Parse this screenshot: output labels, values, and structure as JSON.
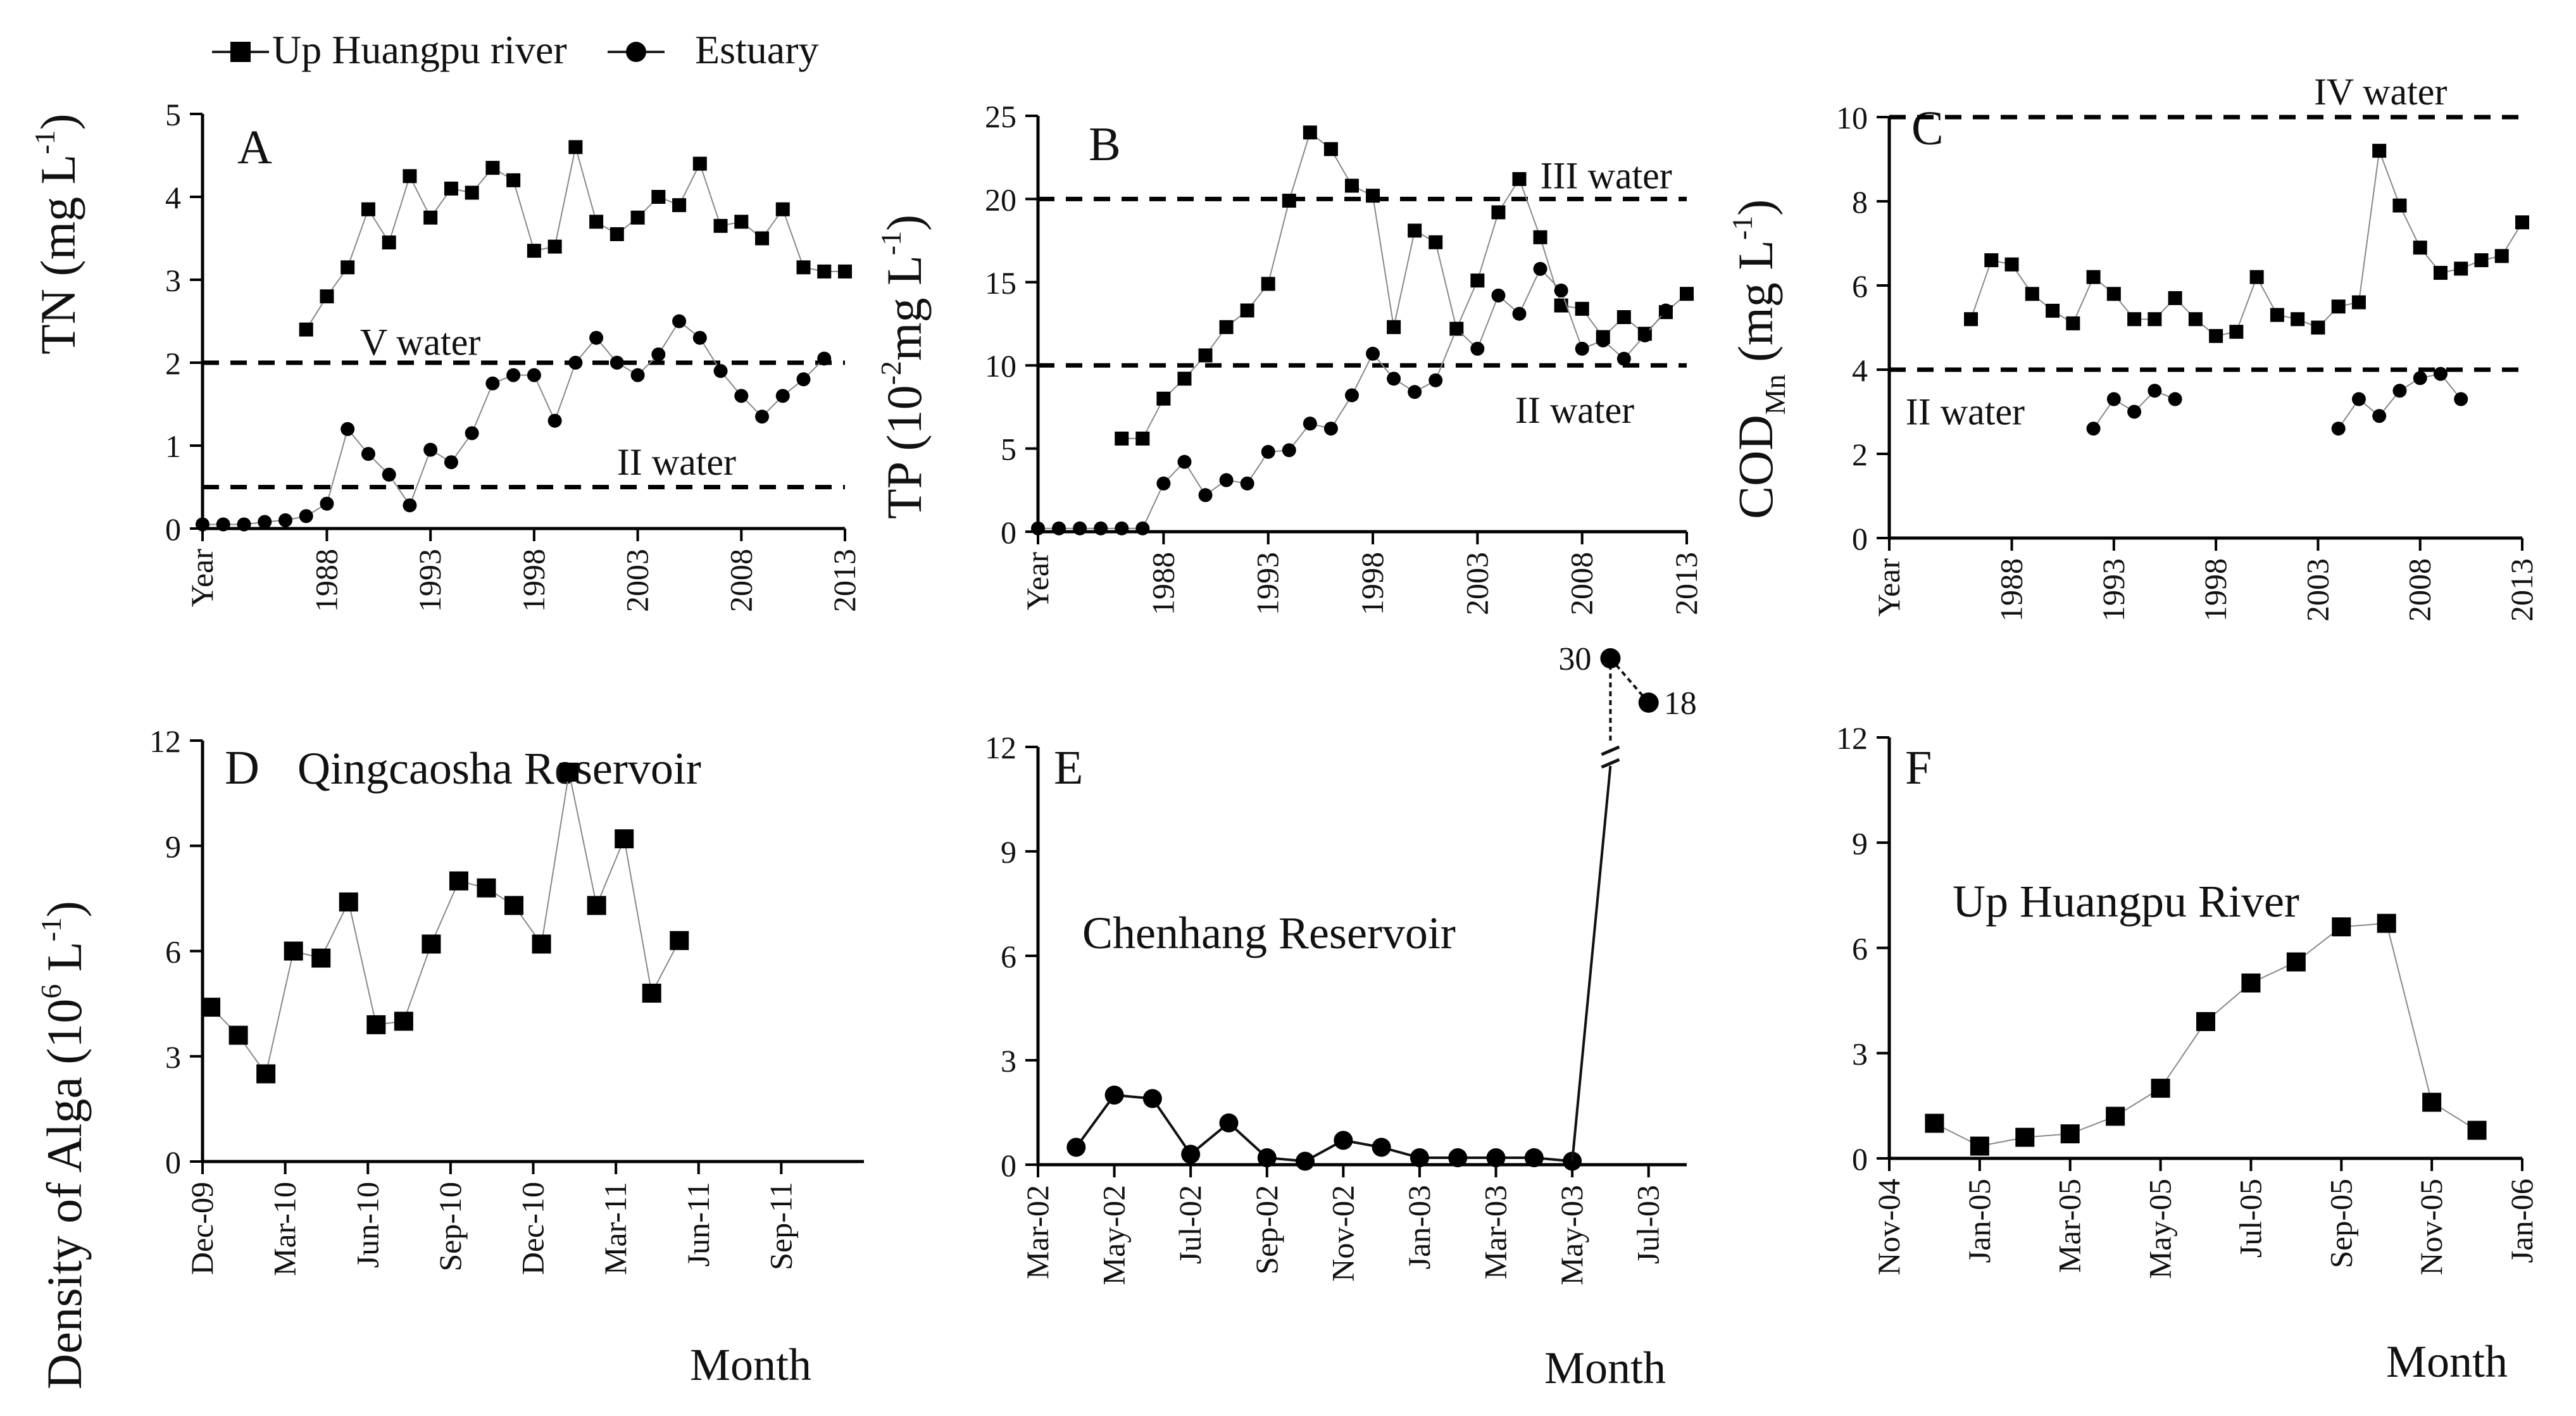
{
  "legend": {
    "series1": "Up Huangpu river",
    "series2": "Estuary"
  },
  "shared": {
    "month_label": "Month",
    "density_ylabel": "Density of Alga (10^6 L^-1)"
  },
  "chart_data": [
    {
      "id": "A",
      "panel_letter": "A",
      "type": "line",
      "ylabel": "TN (mg L^-1)",
      "ylim": [
        0,
        5
      ],
      "yticks": [
        "0",
        "1",
        "2",
        "3",
        "4",
        "5"
      ],
      "xlim": [
        1982,
        2013
      ],
      "xticks": [
        {
          "pos": 1982,
          "label": "Year"
        },
        {
          "pos": 1988,
          "label": "1988"
        },
        {
          "pos": 1993,
          "label": "1993"
        },
        {
          "pos": 1998,
          "label": "1998"
        },
        {
          "pos": 2003,
          "label": "2003"
        },
        {
          "pos": 2008,
          "label": "2008"
        },
        {
          "pos": 2013,
          "label": "2013"
        }
      ],
      "reference_lines": [
        {
          "y": 2,
          "label": "V water",
          "label_x": 1989.6,
          "label_y": 2.25
        },
        {
          "y": 0.5,
          "label": "II water",
          "label_x": 2002,
          "label_y": 0.8
        }
      ],
      "series": [
        {
          "name": "Up Huangpu river",
          "marker": "square",
          "x": [
            1987,
            1988,
            1989,
            1990,
            1991,
            1992,
            1993,
            1994,
            1995,
            1996,
            1997,
            1998,
            1999,
            2000,
            2001,
            2002,
            2003,
            2004,
            2005,
            2006,
            2007,
            2008,
            2009,
            2010,
            2011,
            2012,
            2013
          ],
          "y": [
            2.4,
            2.8,
            3.15,
            3.85,
            3.45,
            4.25,
            3.75,
            4.1,
            4.05,
            4.35,
            4.2,
            3.35,
            3.4,
            4.6,
            3.7,
            3.55,
            3.75,
            4.0,
            3.9,
            4.4,
            3.65,
            3.7,
            3.5,
            3.85,
            3.15,
            3.1,
            3.1
          ]
        },
        {
          "name": "Estuary",
          "marker": "circle",
          "x": [
            1982,
            1983,
            1984,
            1985,
            1986,
            1987,
            1988,
            1989,
            1990,
            1991,
            1992,
            1993,
            1994,
            1995,
            1996,
            1997,
            1998,
            1999,
            2000,
            2001,
            2002,
            2003,
            2004,
            2005,
            2006,
            2007,
            2008,
            2009,
            2010,
            2011,
            2012
          ],
          "y": [
            0.05,
            0.05,
            0.05,
            0.08,
            0.1,
            0.15,
            0.3,
            1.2,
            0.9,
            0.65,
            0.28,
            0.95,
            0.8,
            1.15,
            1.75,
            1.85,
            1.85,
            1.3,
            2.0,
            2.3,
            2.0,
            1.85,
            2.1,
            2.5,
            2.3,
            1.9,
            1.6,
            1.35,
            1.6,
            1.8,
            2.05
          ]
        }
      ]
    },
    {
      "id": "B",
      "panel_letter": "B",
      "type": "line",
      "ylabel": "TP (10^-2 mg L^-1)",
      "ylim": [
        0,
        25
      ],
      "yticks": [
        "0",
        "5",
        "10",
        "15",
        "20",
        "25"
      ],
      "xlim": [
        1982,
        2013
      ],
      "xticks": [
        {
          "pos": 1982,
          "label": "Year"
        },
        {
          "pos": 1988,
          "label": "1988"
        },
        {
          "pos": 1993,
          "label": "1993"
        },
        {
          "pos": 1998,
          "label": "1998"
        },
        {
          "pos": 2003,
          "label": "2003"
        },
        {
          "pos": 2008,
          "label": "2008"
        },
        {
          "pos": 2013,
          "label": "2013"
        }
      ],
      "reference_lines": [
        {
          "y": 20,
          "label": "III water",
          "label_x": 2006,
          "label_y": 21.4
        },
        {
          "y": 10,
          "label": "II water",
          "label_x": 2004.8,
          "label_y": 7.3
        }
      ],
      "series": [
        {
          "name": "Up Huangpu river",
          "marker": "square",
          "x": [
            1986,
            1987,
            1988,
            1989,
            1990,
            1991,
            1992,
            1993,
            1994,
            1995,
            1996,
            1997,
            1998,
            1999,
            2000,
            2001,
            2002,
            2003,
            2004,
            2005,
            2006,
            2007,
            2008,
            2009,
            2010,
            2011,
            2012,
            2013
          ],
          "y": [
            5.6,
            5.6,
            8.0,
            9.2,
            10.6,
            12.3,
            13.3,
            14.9,
            19.9,
            24.0,
            23.0,
            20.8,
            20.2,
            12.3,
            18.1,
            17.4,
            12.2,
            15.1,
            19.2,
            21.2,
            17.7,
            13.6,
            13.4,
            11.7,
            12.9,
            11.9,
            13.2,
            14.3
          ]
        },
        {
          "name": "Estuary",
          "marker": "circle",
          "x": [
            1982,
            1983,
            1984,
            1985,
            1986,
            1987,
            1988,
            1989,
            1990,
            1991,
            1992,
            1993,
            1994,
            1995,
            1996,
            1997,
            1998,
            1999,
            2000,
            2001,
            2002,
            2003,
            2004,
            2005,
            2006,
            2007,
            2008,
            2009,
            2010,
            2011,
            2012
          ],
          "y": [
            0.2,
            0.2,
            0.2,
            0.2,
            0.2,
            0.2,
            2.9,
            4.2,
            2.2,
            3.1,
            2.9,
            4.8,
            4.9,
            6.5,
            6.2,
            8.2,
            10.7,
            9.2,
            8.4,
            9.1,
            12.2,
            11.0,
            14.2,
            13.1,
            15.8,
            14.5,
            11.0,
            11.5,
            10.4,
            11.8,
            13.3
          ]
        }
      ]
    },
    {
      "id": "C",
      "panel_letter": "C",
      "type": "line",
      "ylabel": "COD_Mn (mg L^-1)",
      "ylim": [
        0,
        10
      ],
      "yticks": [
        "0",
        "2",
        "4",
        "6",
        "8",
        "10"
      ],
      "xlim": [
        1982,
        2013
      ],
      "xticks": [
        {
          "pos": 1982,
          "label": "Year"
        },
        {
          "pos": 1988,
          "label": "1988"
        },
        {
          "pos": 1993,
          "label": "1993"
        },
        {
          "pos": 1998,
          "label": "1998"
        },
        {
          "pos": 2003,
          "label": "2003"
        },
        {
          "pos": 2008,
          "label": "2008"
        },
        {
          "pos": 2013,
          "label": "2013"
        }
      ],
      "reference_lines": [
        {
          "y": 10,
          "label": "IV water",
          "label_x": 2002.8,
          "label_y": 10.6
        },
        {
          "y": 4,
          "label": "II water",
          "label_x": 1982.8,
          "label_y": 3.0
        }
      ],
      "series": [
        {
          "name": "Up Huangpu river",
          "marker": "square",
          "x": [
            1986,
            1987,
            1988,
            1989,
            1990,
            1991,
            1992,
            1993,
            1994,
            1995,
            1996,
            1997,
            1998,
            1999,
            2000,
            2001,
            2002,
            2003,
            2004,
            2005,
            2006,
            2007,
            2008,
            2009,
            2010,
            2011,
            2012,
            2013
          ],
          "y": [
            5.2,
            6.6,
            6.5,
            5.8,
            5.4,
            5.1,
            6.2,
            5.8,
            5.2,
            5.2,
            5.7,
            5.2,
            4.8,
            4.9,
            6.2,
            5.3,
            5.2,
            5.0,
            5.5,
            5.6,
            9.2,
            7.9,
            6.9,
            6.3,
            6.4,
            6.6,
            6.7,
            7.5
          ]
        },
        {
          "name": "Estuary",
          "marker": "circle",
          "segments": [
            {
              "x": [
                1992,
                1993,
                1994,
                1995,
                1996
              ],
              "y": [
                2.6,
                3.3,
                3.0,
                3.5,
                3.3
              ]
            },
            {
              "x": [
                2004,
                2005,
                2006,
                2007,
                2008,
                2009,
                2010
              ],
              "y": [
                2.6,
                3.3,
                2.9,
                3.5,
                3.8,
                3.9,
                3.3
              ]
            }
          ]
        }
      ]
    },
    {
      "id": "D",
      "panel_letter": "D",
      "type": "line",
      "title": "Qingcaosha Reservoir",
      "ylim": [
        0,
        12
      ],
      "yticks": [
        "0",
        "3",
        "6",
        "9",
        "12"
      ],
      "xlim": [
        0,
        24
      ],
      "xticks": [
        {
          "pos": 0,
          "label": "Dec-09"
        },
        {
          "pos": 3,
          "label": "Mar-10"
        },
        {
          "pos": 6,
          "label": "Jun-10"
        },
        {
          "pos": 9,
          "label": "Sep-10"
        },
        {
          "pos": 12,
          "label": "Dec-10"
        },
        {
          "pos": 15,
          "label": "Mar-11"
        },
        {
          "pos": 18,
          "label": "Jun-11"
        },
        {
          "pos": 21,
          "label": "Sep-11"
        }
      ],
      "series": [
        {
          "name": "Qingcaosha Reservoir",
          "marker": "square",
          "x": [
            0.3,
            1.3,
            2.3,
            3.3,
            4.3,
            5.3,
            6.3,
            7.3,
            8.3,
            9.3,
            10.3,
            11.3,
            12.3,
            13.3,
            14.3,
            15.3,
            16.3,
            17.3
          ],
          "y": [
            4.4,
            3.6,
            2.5,
            6.0,
            5.8,
            7.4,
            3.9,
            4.0,
            6.2,
            8.0,
            7.8,
            7.3,
            6.2,
            11.1,
            7.3,
            9.2,
            4.8,
            6.3
          ]
        }
      ]
    },
    {
      "id": "E",
      "panel_letter": "E",
      "type": "line",
      "title": "Chenhang Reservoir",
      "ylim": [
        0,
        12
      ],
      "yticks": [
        "0",
        "3",
        "6",
        "9",
        "12"
      ],
      "xlim": [
        0,
        17
      ],
      "xticks": [
        {
          "pos": 0,
          "label": "Mar-02"
        },
        {
          "pos": 2,
          "label": "May-02"
        },
        {
          "pos": 4,
          "label": "Jul-02"
        },
        {
          "pos": 6,
          "label": "Sep-02"
        },
        {
          "pos": 8,
          "label": "Nov-02"
        },
        {
          "pos": 10,
          "label": "Jan-03"
        },
        {
          "pos": 12,
          "label": "Mar-03"
        },
        {
          "pos": 14,
          "label": "May-03"
        },
        {
          "pos": 16,
          "label": "Jul-03"
        }
      ],
      "series": [
        {
          "name": "Chenhang Reservoir",
          "marker": "circle",
          "x": [
            1,
            2,
            3,
            4,
            5,
            6,
            7,
            8,
            9,
            10,
            11,
            12,
            13,
            14
          ],
          "y": [
            0.5,
            2.0,
            1.9,
            0.3,
            1.2,
            0.2,
            0.1,
            0.7,
            0.5,
            0.2,
            0.2,
            0.2,
            0.2,
            0.1
          ]
        }
      ],
      "broken_axis_points": [
        {
          "x": 15,
          "value": 30,
          "label": "30"
        },
        {
          "x": 16,
          "value": 18,
          "label": "18"
        }
      ]
    },
    {
      "id": "F",
      "panel_letter": "F",
      "type": "line",
      "title": "Up Huangpu River",
      "ylim": [
        0,
        12
      ],
      "yticks": [
        "0",
        "3",
        "6",
        "9",
        "12"
      ],
      "xlim": [
        0,
        14
      ],
      "xticks": [
        {
          "pos": 0,
          "label": "Nov-04"
        },
        {
          "pos": 2,
          "label": "Jan-05"
        },
        {
          "pos": 4,
          "label": "Mar-05"
        },
        {
          "pos": 6,
          "label": "May-05"
        },
        {
          "pos": 8,
          "label": "Jul-05"
        },
        {
          "pos": 10,
          "label": "Sep-05"
        },
        {
          "pos": 12,
          "label": "Nov-05"
        },
        {
          "pos": 14,
          "label": "Jan-06"
        }
      ],
      "series": [
        {
          "name": "Up Huangpu River",
          "marker": "square",
          "x": [
            1,
            2,
            3,
            4,
            5,
            6,
            7,
            8,
            9,
            10,
            11,
            12,
            13
          ],
          "y": [
            1.0,
            0.35,
            0.6,
            0.7,
            1.2,
            2.0,
            3.9,
            5.0,
            5.6,
            6.6,
            6.7,
            1.6,
            0.8
          ]
        }
      ]
    }
  ]
}
